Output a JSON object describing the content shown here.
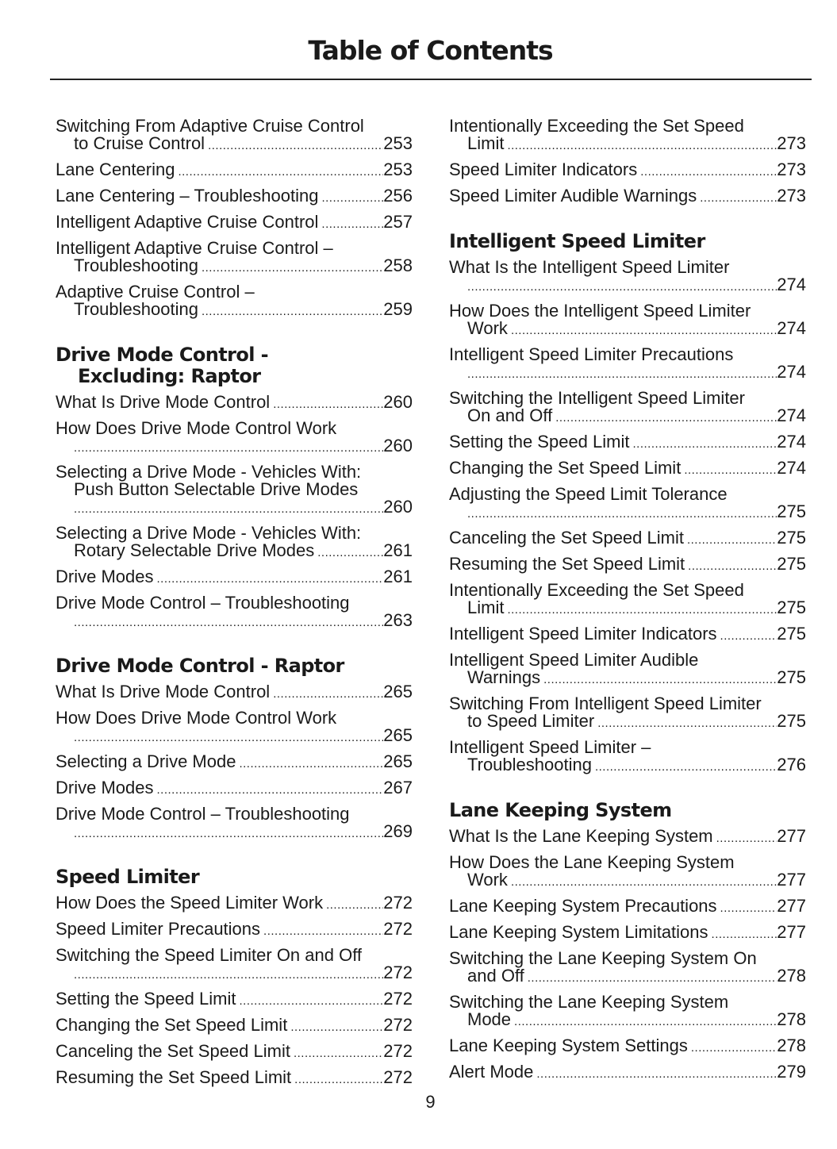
{
  "header": {
    "title": "Table of Contents"
  },
  "footer": {
    "page_number": "9"
  },
  "columns": [
    [
      {
        "type": "entry",
        "lines": [
          "Switching From Adaptive Cruise Control",
          "to Cruise Control"
        ],
        "page": "253"
      },
      {
        "type": "entry",
        "lines": [
          "Lane Centering"
        ],
        "page": "253"
      },
      {
        "type": "entry",
        "lines": [
          "Lane Centering – Troubleshooting"
        ],
        "page": "256"
      },
      {
        "type": "entry",
        "lines": [
          "Intelligent Adaptive Cruise Control"
        ],
        "page": "257"
      },
      {
        "type": "entry",
        "lines": [
          "Intelligent Adaptive Cruise Control –",
          "Troubleshooting"
        ],
        "page": "258"
      },
      {
        "type": "entry",
        "lines": [
          "Adaptive Cruise Control –",
          "Troubleshooting"
        ],
        "page": "259"
      },
      {
        "type": "heading",
        "lines": [
          "Drive Mode Control -",
          "Excluding: Raptor"
        ]
      },
      {
        "type": "entry",
        "lines": [
          "What Is Drive Mode Control"
        ],
        "page": "260"
      },
      {
        "type": "entry",
        "lines": [
          "How Does Drive Mode Control Work",
          ""
        ],
        "page": "260"
      },
      {
        "type": "entry",
        "lines": [
          "Selecting a Drive Mode - Vehicles With:",
          "Push Button Selectable Drive Modes",
          ""
        ],
        "page": "260"
      },
      {
        "type": "entry",
        "lines": [
          "Selecting a Drive Mode - Vehicles With:",
          "Rotary Selectable Drive Modes"
        ],
        "page": "261"
      },
      {
        "type": "entry",
        "lines": [
          "Drive Modes"
        ],
        "page": "261"
      },
      {
        "type": "entry",
        "lines": [
          "Drive Mode Control – Troubleshooting",
          ""
        ],
        "page": "263"
      },
      {
        "type": "heading",
        "lines": [
          "Drive Mode Control - Raptor"
        ]
      },
      {
        "type": "entry",
        "lines": [
          "What Is Drive Mode Control"
        ],
        "page": "265"
      },
      {
        "type": "entry",
        "lines": [
          "How Does Drive Mode Control Work",
          ""
        ],
        "page": "265"
      },
      {
        "type": "entry",
        "lines": [
          "Selecting a Drive Mode"
        ],
        "page": "265"
      },
      {
        "type": "entry",
        "lines": [
          "Drive Modes"
        ],
        "page": "267"
      },
      {
        "type": "entry",
        "lines": [
          "Drive Mode Control – Troubleshooting",
          ""
        ],
        "page": "269"
      },
      {
        "type": "heading",
        "lines": [
          "Speed Limiter"
        ]
      },
      {
        "type": "entry",
        "lines": [
          "How Does the Speed Limiter Work"
        ],
        "page": "272"
      },
      {
        "type": "entry",
        "lines": [
          "Speed Limiter Precautions"
        ],
        "page": "272"
      },
      {
        "type": "entry",
        "lines": [
          "Switching the Speed Limiter On and Off",
          ""
        ],
        "page": "272"
      },
      {
        "type": "entry",
        "lines": [
          "Setting the Speed Limit"
        ],
        "page": "272"
      },
      {
        "type": "entry",
        "lines": [
          "Changing the Set Speed Limit"
        ],
        "page": "272"
      },
      {
        "type": "entry",
        "lines": [
          "Canceling the Set Speed Limit"
        ],
        "page": "272"
      },
      {
        "type": "entry",
        "lines": [
          "Resuming the Set Speed Limit"
        ],
        "page": "272"
      }
    ],
    [
      {
        "type": "entry",
        "lines": [
          "Intentionally Exceeding the Set Speed",
          "Limit"
        ],
        "page": "273"
      },
      {
        "type": "entry",
        "lines": [
          "Speed Limiter Indicators"
        ],
        "page": "273"
      },
      {
        "type": "entry",
        "lines": [
          "Speed Limiter Audible Warnings"
        ],
        "page": "273"
      },
      {
        "type": "heading",
        "lines": [
          "Intelligent Speed Limiter"
        ]
      },
      {
        "type": "entry",
        "lines": [
          "What Is the Intelligent Speed Limiter",
          ""
        ],
        "page": "274"
      },
      {
        "type": "entry",
        "lines": [
          "How Does the Intelligent Speed Limiter",
          "Work"
        ],
        "page": "274"
      },
      {
        "type": "entry",
        "lines": [
          "Intelligent Speed Limiter Precautions",
          ""
        ],
        "page": "274"
      },
      {
        "type": "entry",
        "lines": [
          "Switching the Intelligent Speed Limiter",
          "On and Off"
        ],
        "page": "274"
      },
      {
        "type": "entry",
        "lines": [
          "Setting the Speed Limit"
        ],
        "page": "274"
      },
      {
        "type": "entry",
        "lines": [
          "Changing the Set Speed Limit"
        ],
        "page": "274"
      },
      {
        "type": "entry",
        "lines": [
          "Adjusting the Speed Limit Tolerance",
          ""
        ],
        "page": "275"
      },
      {
        "type": "entry",
        "lines": [
          "Canceling the Set Speed Limit"
        ],
        "page": "275"
      },
      {
        "type": "entry",
        "lines": [
          "Resuming the Set Speed Limit"
        ],
        "page": "275"
      },
      {
        "type": "entry",
        "lines": [
          "Intentionally Exceeding the Set Speed",
          "Limit"
        ],
        "page": "275"
      },
      {
        "type": "entry",
        "lines": [
          "Intelligent Speed Limiter Indicators"
        ],
        "page": "275"
      },
      {
        "type": "entry",
        "lines": [
          "Intelligent Speed Limiter Audible",
          "Warnings"
        ],
        "page": "275"
      },
      {
        "type": "entry",
        "lines": [
          "Switching From Intelligent Speed Limiter",
          "to Speed Limiter"
        ],
        "page": "275"
      },
      {
        "type": "entry",
        "lines": [
          "Intelligent Speed Limiter –",
          "Troubleshooting"
        ],
        "page": "276"
      },
      {
        "type": "heading",
        "lines": [
          "Lane Keeping System"
        ]
      },
      {
        "type": "entry",
        "lines": [
          "What Is the Lane Keeping System"
        ],
        "page": "277"
      },
      {
        "type": "entry",
        "lines": [
          "How Does the Lane Keeping System",
          "Work"
        ],
        "page": "277"
      },
      {
        "type": "entry",
        "lines": [
          "Lane Keeping System Precautions"
        ],
        "page": "277"
      },
      {
        "type": "entry",
        "lines": [
          "Lane Keeping System Limitations"
        ],
        "page": "277"
      },
      {
        "type": "entry",
        "lines": [
          "Switching the Lane Keeping System On",
          "and Off"
        ],
        "page": "278"
      },
      {
        "type": "entry",
        "lines": [
          "Switching the Lane Keeping System",
          "Mode"
        ],
        "page": "278"
      },
      {
        "type": "entry",
        "lines": [
          "Lane Keeping System Settings"
        ],
        "page": "278"
      },
      {
        "type": "entry",
        "lines": [
          "Alert Mode"
        ],
        "page": "279"
      }
    ]
  ]
}
